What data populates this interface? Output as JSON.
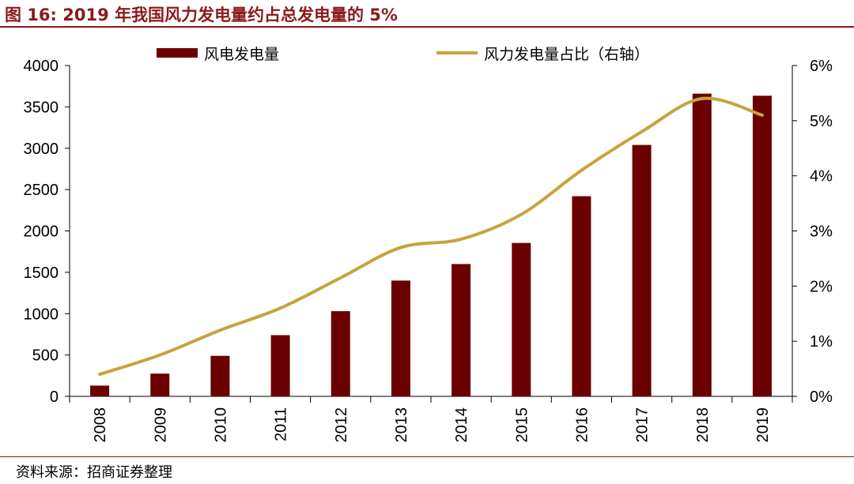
{
  "header": {
    "title": "图 16:  2019 年我国风力发电量约占总发电量的 5%"
  },
  "footer": {
    "source": "资料来源：招商证券整理"
  },
  "colors": {
    "bar": "#6b0000",
    "line": "#c8a33c",
    "accent": "#8b1a1a"
  },
  "chart_data": {
    "type": "bar",
    "categories": [
      "2008",
      "2009",
      "2010",
      "2011",
      "2012",
      "2013",
      "2014",
      "2015",
      "2016",
      "2017",
      "2018",
      "2019"
    ],
    "series": [
      {
        "name": "风电发电量",
        "type": "bar",
        "axis": "left",
        "values": [
          130,
          275,
          490,
          740,
          1030,
          1400,
          1600,
          1855,
          2420,
          3040,
          3660,
          3635
        ]
      },
      {
        "name": "风力发电量占比（右轴）",
        "type": "line",
        "axis": "right",
        "values": [
          0.4,
          0.75,
          1.2,
          1.6,
          2.15,
          2.7,
          2.85,
          3.3,
          4.1,
          4.8,
          5.4,
          5.1
        ]
      }
    ],
    "ylim": [
      0,
      4000
    ],
    "yticks": [
      "0",
      "500",
      "1000",
      "1500",
      "2000",
      "2500",
      "3000",
      "3500",
      "4000"
    ],
    "y2lim": [
      0,
      6
    ],
    "y2ticks": [
      "0%",
      "1%",
      "2%",
      "3%",
      "4%",
      "5%",
      "6%"
    ],
    "legend_position": "top",
    "grid": false
  }
}
